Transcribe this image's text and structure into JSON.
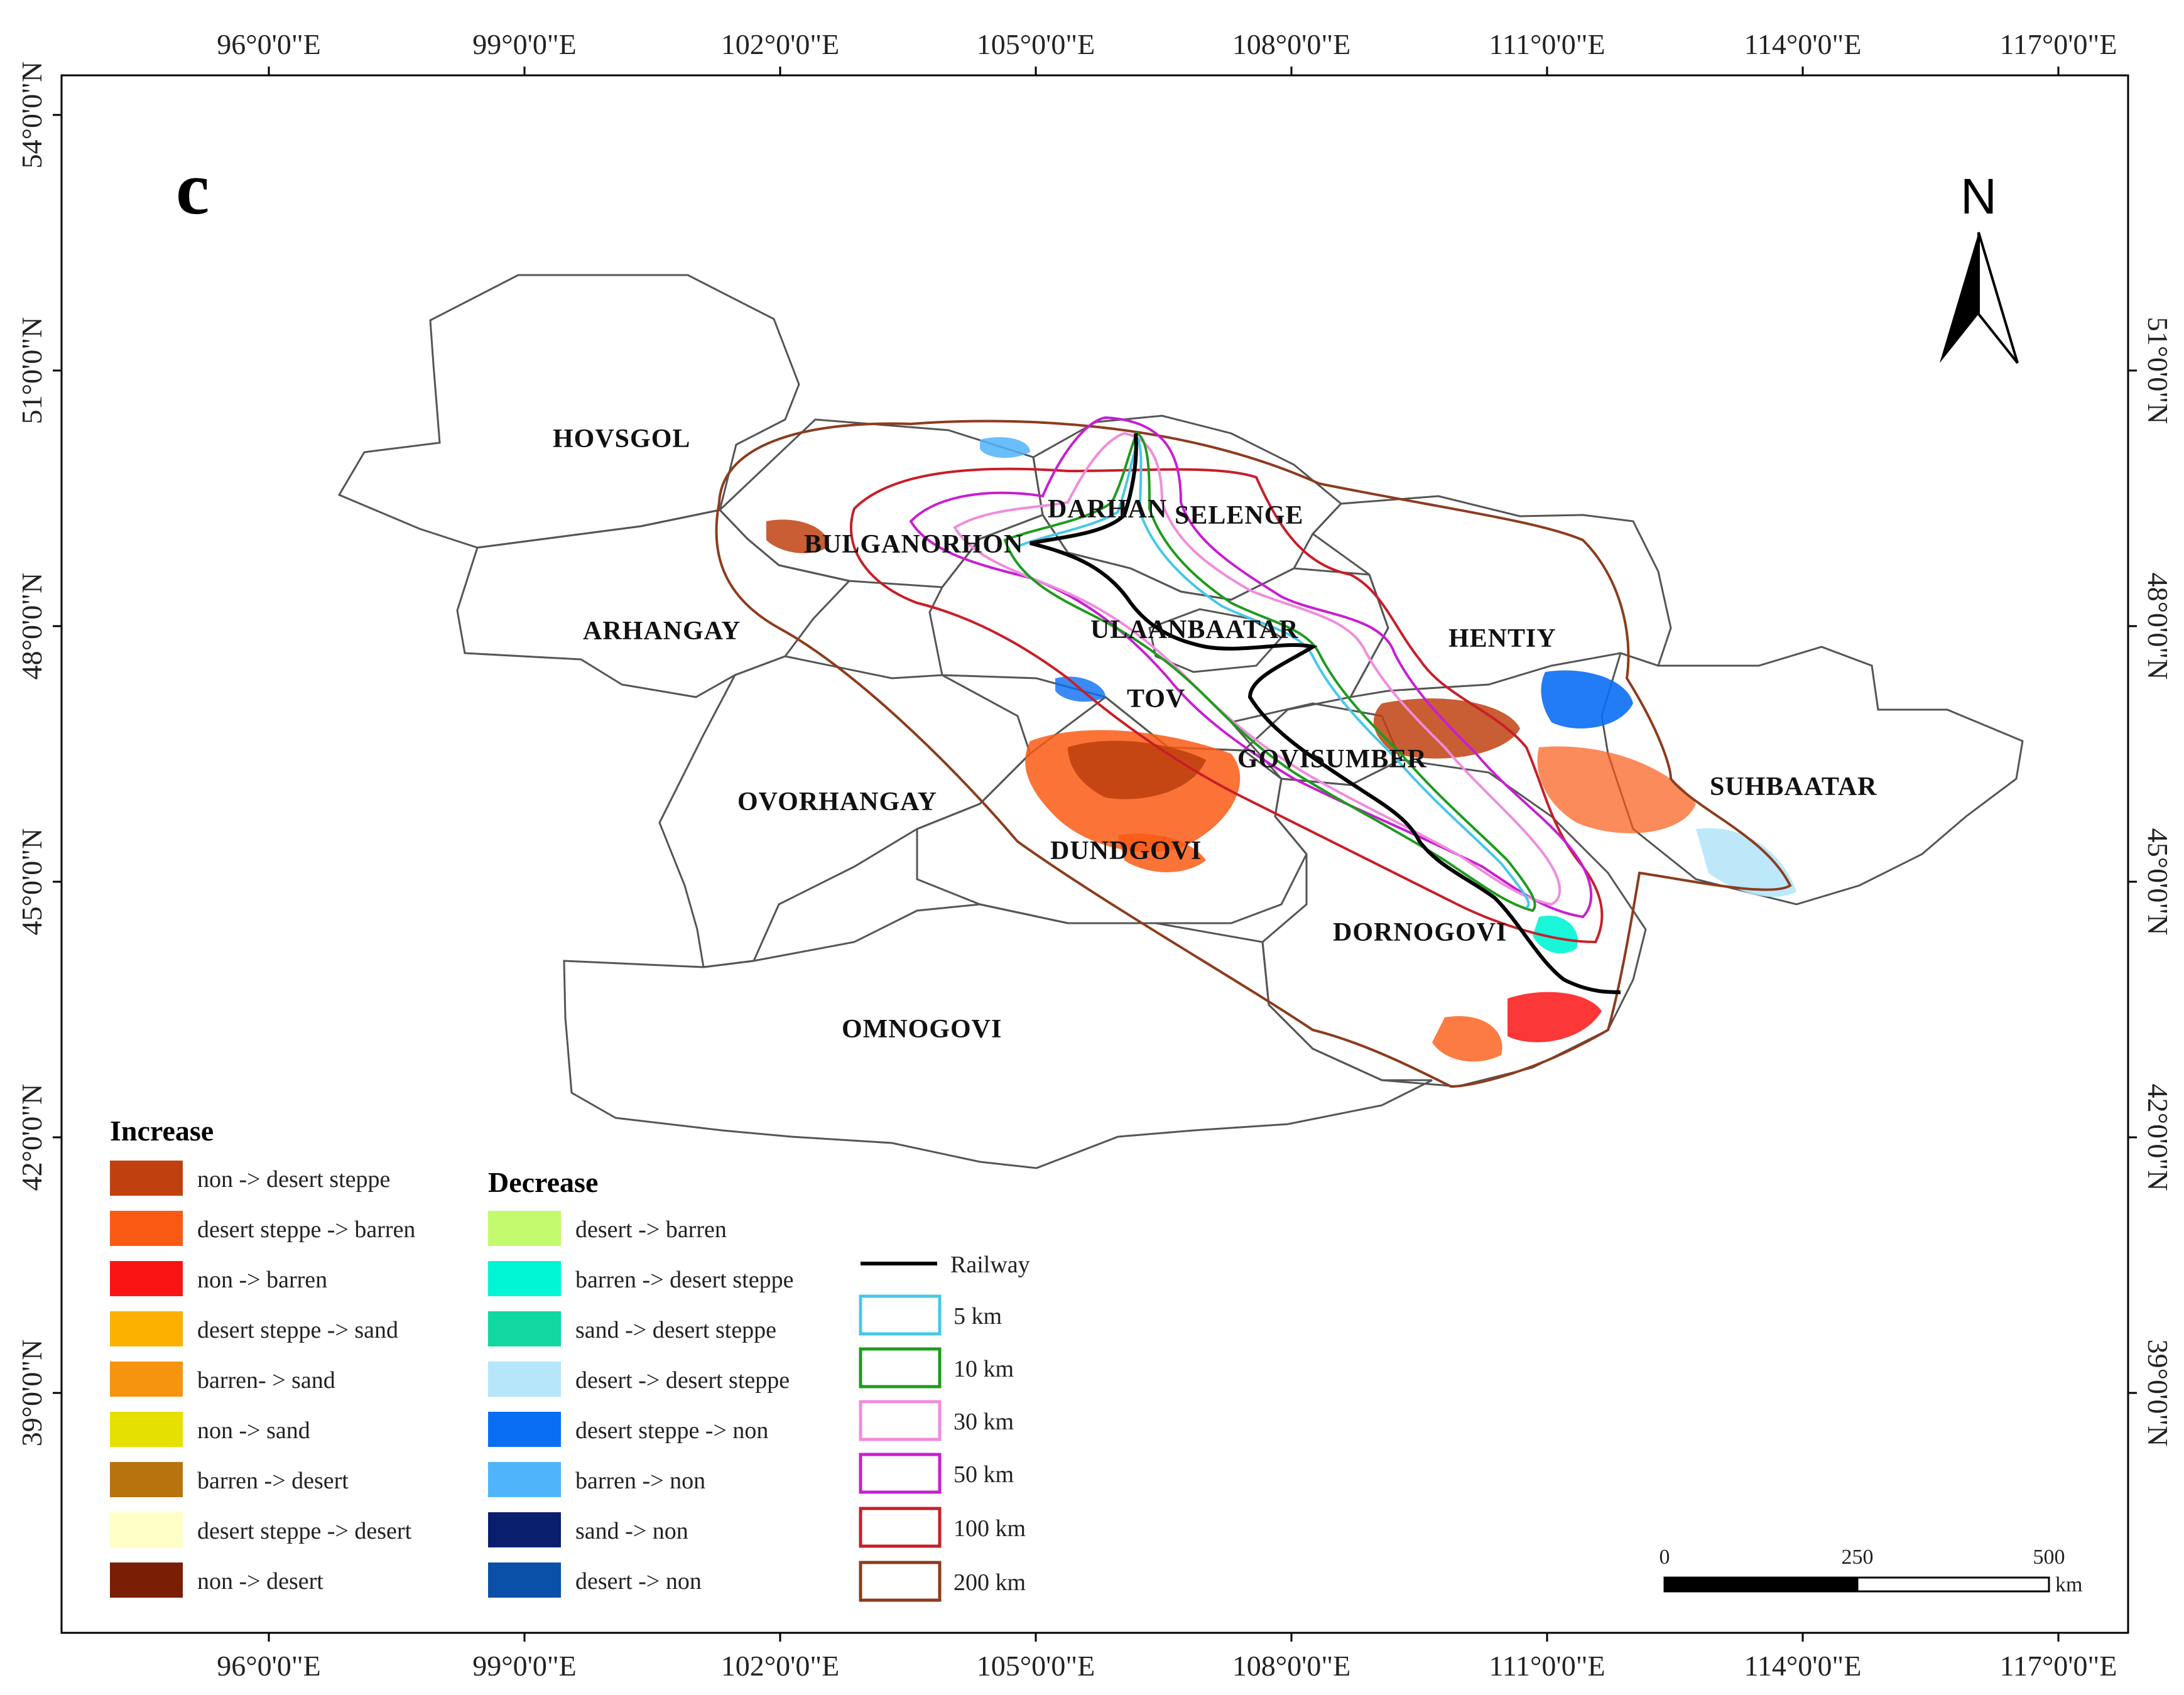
{
  "panel_label": "c",
  "north_label": "N",
  "axes": {
    "top_ticks": [
      "96°0'0\"E",
      "99°0'0\"E",
      "102°0'0\"E",
      "105°0'0\"E",
      "108°0'0\"E",
      "111°0'0\"E",
      "114°0'0\"E",
      "117°0'0\"E"
    ],
    "bottom_ticks": [
      "96°0'0\"E",
      "99°0'0\"E",
      "102°0'0\"E",
      "105°0'0\"E",
      "108°0'0\"E",
      "111°0'0\"E",
      "114°0'0\"E",
      "117°0'0\"E"
    ],
    "left_ticks": [
      "54°0'0\"N",
      "51°0'0\"N",
      "48°0'0\"N",
      "45°0'0\"N",
      "42°0'0\"N",
      "39°0'0\"N"
    ],
    "right_ticks": [
      "51°0'0\"N",
      "48°0'0\"N",
      "45°0'0\"N",
      "42°0'0\"N",
      "39°0'0\"N"
    ]
  },
  "regions": [
    {
      "name": "HOVSGOL"
    },
    {
      "name": "BULGANORHON"
    },
    {
      "name": "DARHAN"
    },
    {
      "name": "SELENGE"
    },
    {
      "name": "ARHANGAY"
    },
    {
      "name": "ULAANBAATAR"
    },
    {
      "name": "HENTIY"
    },
    {
      "name": "TOV"
    },
    {
      "name": "GOVISUMBER"
    },
    {
      "name": "OVORHANGAY"
    },
    {
      "name": "SUHBAATAR"
    },
    {
      "name": "DUNDGOVI"
    },
    {
      "name": "DORNOGOVI"
    },
    {
      "name": "OMNOGOVI"
    }
  ],
  "legend_increase": {
    "title": "Increase",
    "items": [
      {
        "label": "non -> desert steppe",
        "color": "#c0410f"
      },
      {
        "label": "desert steppe -> barren",
        "color": "#fa5a14"
      },
      {
        "label": "non -> barren",
        "color": "#fa1414"
      },
      {
        "label": "desert steppe -> sand",
        "color": "#fcb000"
      },
      {
        "label": "barren- > sand",
        "color": "#f7940f"
      },
      {
        "label": "non -> sand",
        "color": "#e6e000"
      },
      {
        "label": "barren -> desert",
        "color": "#b8720e"
      },
      {
        "label": "desert steppe -> desert",
        "color": "#ffffc8"
      },
      {
        "label": "non -> desert",
        "color": "#7a1e05"
      }
    ]
  },
  "legend_decrease": {
    "title": "Decrease",
    "items": [
      {
        "label": "desert -> barren",
        "color": "#c3fa6e"
      },
      {
        "label": "barren -> desert steppe",
        "color": "#00f5d5"
      },
      {
        "label": "sand -> desert steppe",
        "color": "#10d8a0"
      },
      {
        "label": "desert -> desert steppe",
        "color": "#b5e6fa"
      },
      {
        "label": "desert steppe -> non",
        "color": "#0a6ef5"
      },
      {
        "label": "barren -> non",
        "color": "#50b4fa"
      },
      {
        "label": "sand -> non",
        "color": "#0a1e6e"
      },
      {
        "label": "desert -> non",
        "color": "#0a50a8"
      }
    ]
  },
  "legend_buffers": {
    "railway": {
      "label": "Railway",
      "color": "#000000"
    },
    "items": [
      {
        "label": "5 km",
        "color": "#46c8e6"
      },
      {
        "label": "10 km",
        "color": "#1e9b1e"
      },
      {
        "label": "30 km",
        "color": "#f08cdc"
      },
      {
        "label": "50 km",
        "color": "#c81ed2"
      },
      {
        "label": "100 km",
        "color": "#c81e28"
      },
      {
        "label": "200 km",
        "color": "#8c3c1e"
      }
    ]
  },
  "scale_bar": {
    "labels": [
      "0",
      "250",
      "500"
    ],
    "unit": "km"
  }
}
